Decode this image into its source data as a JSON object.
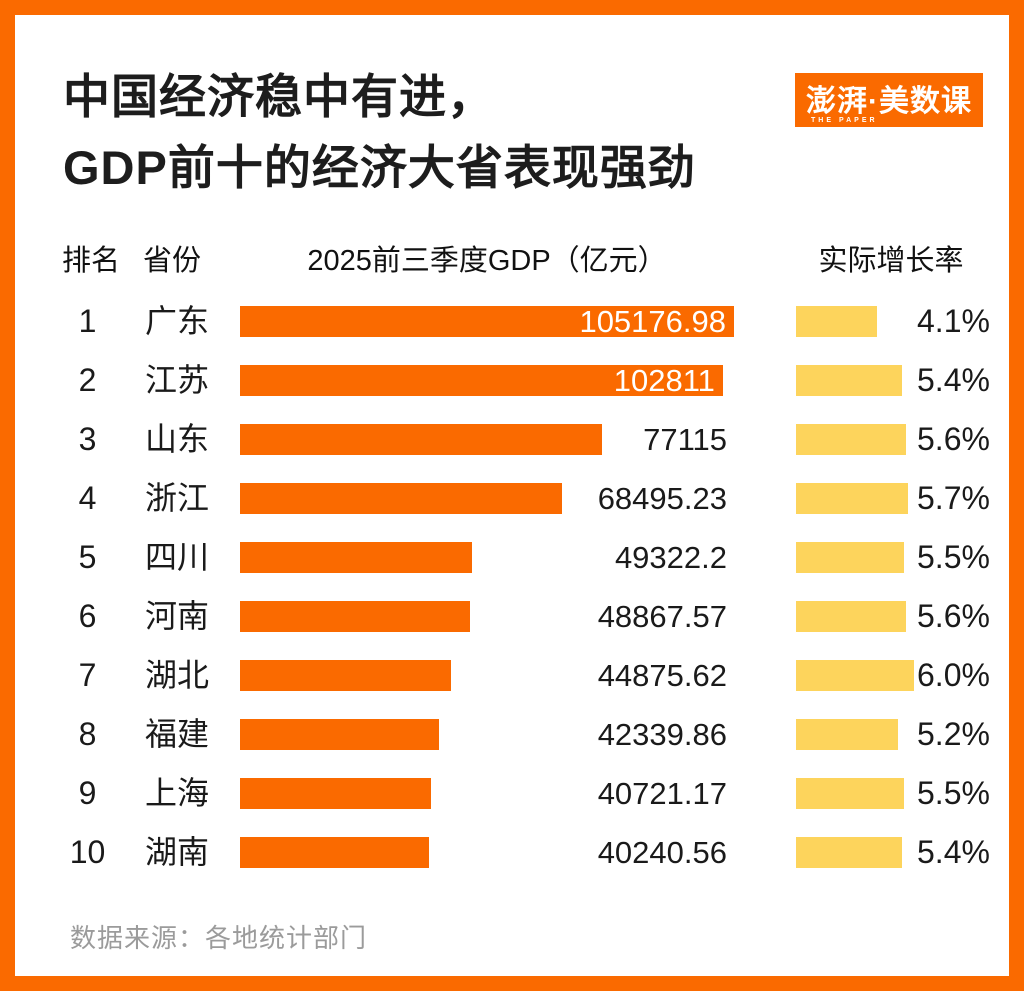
{
  "page": {
    "title_line1": "中国经济稳中有进，",
    "title_line2": "GDP前十的经济大省表现强劲",
    "logo": {
      "brand": "澎湃·美数课",
      "sub": "THE PAPER"
    },
    "source": "数据来源：各地统计部门"
  },
  "colors": {
    "frame_and_bar_orange": "#FA6A00",
    "growth_bar_yellow": "#FDD45C",
    "title_text": "#1D1D1D",
    "body_text": "#1A1A1A",
    "source_text": "#9B9B9B",
    "card_background": "#FFFFFF"
  },
  "chart_data": {
    "type": "bar",
    "title": "中国经济稳中有进，GDP前十的经济大省表现强劲",
    "columns": [
      "排名",
      "省份",
      "2025前三季度GDP（亿元）",
      "实际增长率"
    ],
    "gdp_axis_max": 105176.98,
    "growth_axis_max": 6.0,
    "legend_position": "none",
    "grid": false,
    "rows": [
      {
        "rank": "1",
        "province": "广东",
        "gdp": 105176.98,
        "gdp_label": "105176.98",
        "growth": 4.1,
        "growth_label": "4.1%"
      },
      {
        "rank": "2",
        "province": "江苏",
        "gdp": 102811,
        "gdp_label": "102811",
        "growth": 5.4,
        "growth_label": "5.4%"
      },
      {
        "rank": "3",
        "province": "山东",
        "gdp": 77115,
        "gdp_label": "77115",
        "growth": 5.6,
        "growth_label": "5.6%"
      },
      {
        "rank": "4",
        "province": "浙江",
        "gdp": 68495.23,
        "gdp_label": "68495.23",
        "growth": 5.7,
        "growth_label": "5.7%"
      },
      {
        "rank": "5",
        "province": "四川",
        "gdp": 49322.2,
        "gdp_label": "49322.2",
        "growth": 5.5,
        "growth_label": "5.5%"
      },
      {
        "rank": "6",
        "province": "河南",
        "gdp": 48867.57,
        "gdp_label": "48867.57",
        "growth": 5.6,
        "growth_label": "5.6%"
      },
      {
        "rank": "7",
        "province": "湖北",
        "gdp": 44875.62,
        "gdp_label": "44875.62",
        "growth": 6.0,
        "growth_label": "6.0%"
      },
      {
        "rank": "8",
        "province": "福建",
        "gdp": 42339.86,
        "gdp_label": "42339.86",
        "growth": 5.2,
        "growth_label": "5.2%"
      },
      {
        "rank": "9",
        "province": "上海",
        "gdp": 40721.17,
        "gdp_label": "40721.17",
        "growth": 5.5,
        "growth_label": "5.5%"
      },
      {
        "rank": "10",
        "province": "湖南",
        "gdp": 40240.56,
        "gdp_label": "40240.56",
        "growth": 5.4,
        "growth_label": "5.4%"
      }
    ],
    "source": "数据来源：各地统计部门"
  }
}
